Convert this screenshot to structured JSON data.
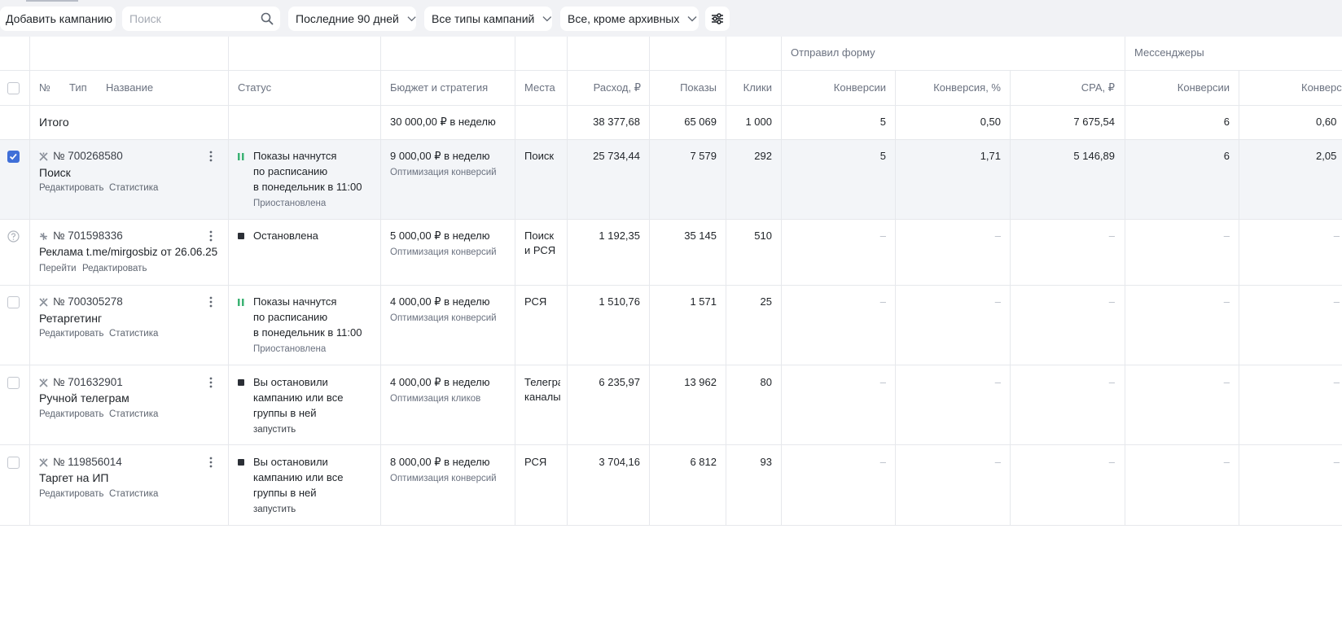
{
  "toolbar": {
    "add_campaign": "Добавить кампанию",
    "search_placeholder": "Поиск",
    "period": "Последние 90 дней",
    "types": "Все типы кампаний",
    "archive": "Все, кроме архивных"
  },
  "table": {
    "group_headers": {
      "form": "Отправил форму",
      "messengers": "Мессенджеры"
    },
    "headers": {
      "no": "№",
      "type": "Тип",
      "name": "Название",
      "status": "Статус",
      "budget": "Бюджет и стратегия",
      "places": "Места",
      "spend": "Расход, ₽",
      "impressions": "Показы",
      "clicks": "Клики",
      "form_conversions": "Конверсии",
      "form_conv_rate": "Конверсия, %",
      "form_cpa": "CPA, ₽",
      "msg_conversions": "Конверсии",
      "msg_conv_rate": "Конверсия, %"
    },
    "total": {
      "label": "Итого",
      "budget": "30 000,00 ₽ в неделю",
      "spend": "38 377,68",
      "impressions": "65 069",
      "clicks": "1 000",
      "form_conversions": "5",
      "form_conv_rate": "0,50",
      "form_cpa": "7 675,54",
      "msg_conversions": "6",
      "msg_conv_rate": "0,60"
    },
    "rows": [
      {
        "id": "№ 700268580",
        "name": "Поиск",
        "link1": "Редактировать",
        "link2": "Статистика",
        "status_line1": "Показы начнутся",
        "status_line2": "по расписанию",
        "status_line3": "в понедельник в 11:00",
        "status_sub": "Приостановлена",
        "budget": "9 000,00 ₽ в неделю",
        "strategy": "Оптимизация конверсий",
        "places_line1": "Поиск",
        "places_line2": "",
        "spend": "25 734,44",
        "impressions": "7 579",
        "clicks": "292",
        "form_conversions": "5",
        "form_conv_rate": "1,71",
        "form_cpa": "5 146,89",
        "msg_conversions": "6",
        "msg_conv_rate": "2,05"
      },
      {
        "id": "№ 701598336",
        "name": "Реклама t.me/mirgosbiz от 26.06.25",
        "link1": "Перейти",
        "link2": "Редактировать",
        "status_line1": "Остановлена",
        "budget": "5 000,00 ₽ в неделю",
        "strategy": "Оптимизация конверсий",
        "places_line1": "Поиск",
        "places_line2": "и РСЯ",
        "spend": "1 192,35",
        "impressions": "35 145",
        "clicks": "510",
        "dash": "–"
      },
      {
        "id": "№ 700305278",
        "name": "Ретаргетинг",
        "link1": "Редактировать",
        "link2": "Статистика",
        "status_line1": "Показы начнутся",
        "status_line2": "по расписанию",
        "status_line3": "в понедельник в 11:00",
        "status_sub": "Приостановлена",
        "budget": "4 000,00 ₽ в неделю",
        "strategy": "Оптимизация конверсий",
        "places_line1": "РСЯ",
        "spend": "1 510,76",
        "impressions": "1 571",
        "clicks": "25",
        "dash": "–"
      },
      {
        "id": "№ 701632901",
        "name": "Ручной телеграм",
        "link1": "Редактировать",
        "link2": "Статистика",
        "status_line1": "Вы остановили",
        "status_line2": "кампанию или все",
        "status_line3": "группы в ней",
        "status_sub": "запустить",
        "budget": "4 000,00 ₽ в неделю",
        "strategy": "Оптимизация кликов",
        "places_line1": "Телегра",
        "places_line2": "каналы",
        "spend": "6 235,97",
        "impressions": "13 962",
        "clicks": "80",
        "dash": "–"
      },
      {
        "id": "№ 119856014",
        "name": "Таргет на ИП",
        "link1": "Редактировать",
        "link2": "Статистика",
        "status_line1": "Вы остановили",
        "status_line2": "кампанию или все",
        "status_line3": "группы в ней",
        "status_sub": "запустить",
        "budget": "8 000,00 ₽ в неделю",
        "strategy": "Оптимизация конверсий",
        "places_line1": "РСЯ",
        "spend": "3 704,16",
        "impressions": "6 812",
        "clicks": "93",
        "dash": "–"
      }
    ]
  },
  "colors": {
    "accent": "#3f6fd8",
    "paused_green": "#3bb273",
    "stopped_dark": "#2b2f36"
  }
}
